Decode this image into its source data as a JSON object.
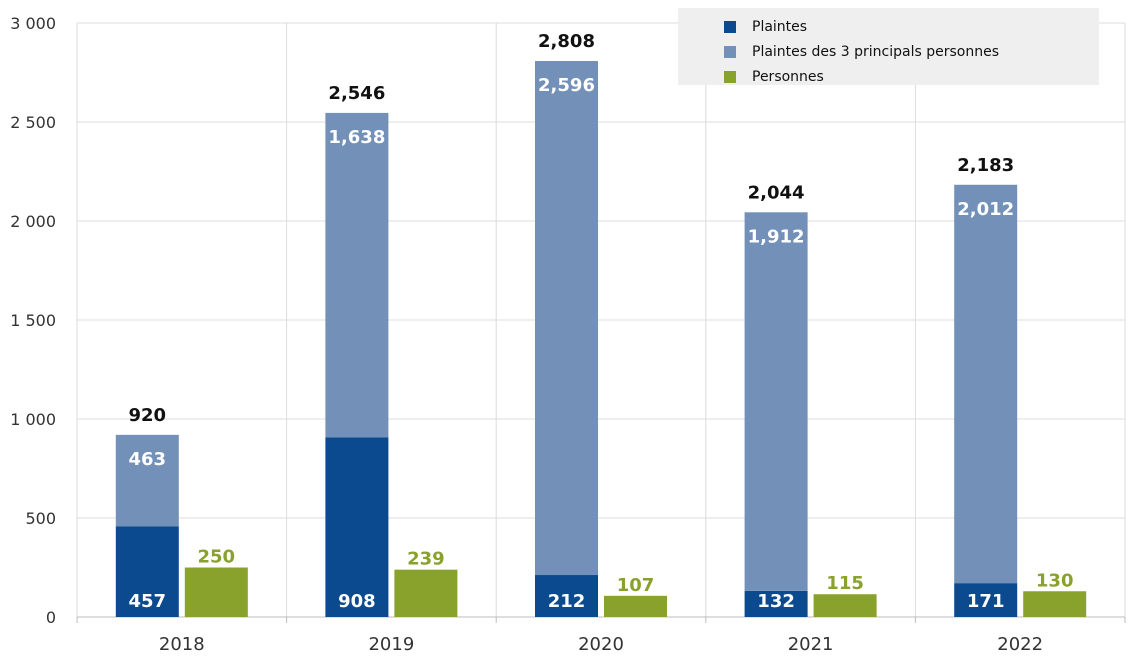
{
  "chart_data": {
    "type": "bar",
    "categories": [
      "2018",
      "2019",
      "2020",
      "2021",
      "2022"
    ],
    "yticks": [
      "0",
      "500",
      "1 000",
      "1 500",
      "2 000",
      "2 500",
      "3 000"
    ],
    "ylim": [
      0,
      3000
    ],
    "grid": true,
    "legend_position": "top-right",
    "colors": {
      "plaintes": "#0b4a8f",
      "plaintes_top3": "#7391b8",
      "personnes": "#88a22b"
    },
    "legend": [
      {
        "key": "plaintes",
        "label": "Plaintes"
      },
      {
        "key": "plaintes_top3",
        "label": "Plaintes des 3 principals personnes"
      },
      {
        "key": "personnes",
        "label": "Personnes"
      }
    ],
    "series": [
      {
        "name": "Plaintes",
        "key": "plaintes",
        "stack": "A",
        "values": [
          457,
          908,
          212,
          132,
          171
        ],
        "labels": [
          "457",
          "908",
          "212",
          "132",
          "171"
        ]
      },
      {
        "name": "Plaintes des 3 principals personnes",
        "key": "plaintes_top3",
        "stack": "A",
        "values": [
          463,
          1638,
          2596,
          1912,
          2012
        ],
        "labels": [
          "463",
          "1,638",
          "2,596",
          "1,912",
          "2,012"
        ]
      },
      {
        "name": "Personnes",
        "key": "personnes",
        "stack": "B",
        "values": [
          250,
          239,
          107,
          115,
          130
        ],
        "labels": [
          "250",
          "239",
          "107",
          "115",
          "130"
        ]
      }
    ],
    "totals": [
      920,
      2546,
      2808,
      2044,
      2183
    ],
    "total_labels": [
      "920",
      "2,546",
      "2,808",
      "2,044",
      "2,183"
    ]
  }
}
